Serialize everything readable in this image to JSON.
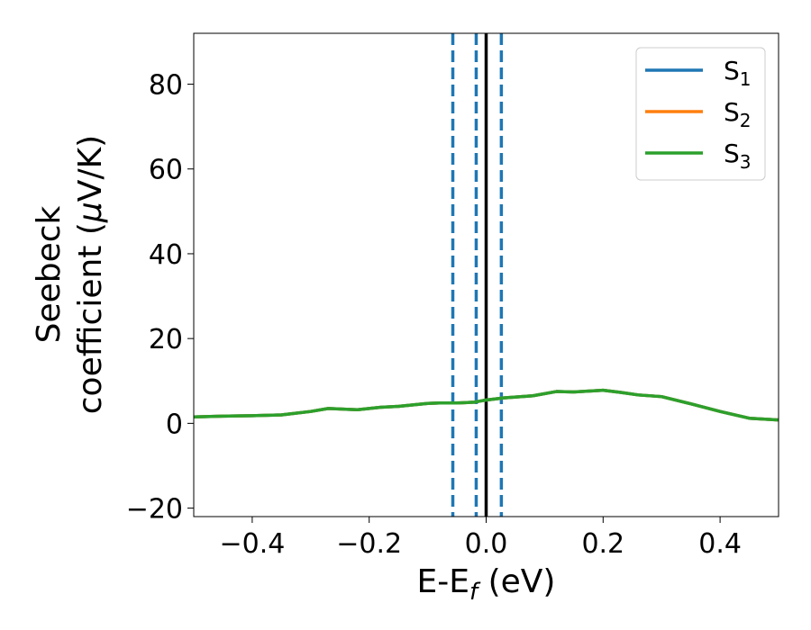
{
  "chart_data": {
    "type": "line",
    "title": "",
    "xlabel": "E-E",
    "xlabel_sub": "f",
    "xlabel_unit": " (eV)",
    "ylabel_line1": "Seebeck",
    "ylabel_line2": "coefficient  (",
    "ylabel_mu": "μ",
    "ylabel_unit": "V/K)",
    "xlim": [
      -0.5,
      0.5
    ],
    "ylim": [
      -22,
      92
    ],
    "xticks": [
      -0.4,
      -0.2,
      0.0,
      0.2,
      0.4
    ],
    "xtick_labels": [
      "−0.4",
      "−0.2",
      "0.0",
      "0.2",
      "0.4"
    ],
    "yticks": [
      -20,
      0,
      20,
      40,
      60,
      80
    ],
    "ytick_labels": [
      "−20",
      "0",
      "20",
      "40",
      "60",
      "80"
    ],
    "grid": false,
    "legend_position": "top-right",
    "series": [
      {
        "name": "S",
        "sub": "1",
        "color": "#1f77b4",
        "x": [
          -0.5,
          -0.45,
          -0.4,
          -0.35,
          -0.3,
          -0.27,
          -0.22,
          -0.18,
          -0.15,
          -0.1,
          -0.08,
          -0.05,
          -0.02,
          0.0,
          0.03,
          0.08,
          0.12,
          0.15,
          0.2,
          0.23,
          0.26,
          0.3,
          0.35,
          0.4,
          0.45,
          0.5
        ],
        "y": [
          1.5,
          1.7,
          1.8,
          2.0,
          2.8,
          3.5,
          3.2,
          3.8,
          4.0,
          4.7,
          4.8,
          4.8,
          5.0,
          5.5,
          6.0,
          6.5,
          7.5,
          7.4,
          7.8,
          7.3,
          6.7,
          6.3,
          4.6,
          2.8,
          1.2,
          0.8
        ]
      },
      {
        "name": "S",
        "sub": "2",
        "color": "#ff7f0e",
        "x": [
          -0.5,
          -0.45,
          -0.4,
          -0.35,
          -0.3,
          -0.27,
          -0.22,
          -0.18,
          -0.15,
          -0.1,
          -0.08,
          -0.05,
          -0.02,
          0.0,
          0.03,
          0.08,
          0.12,
          0.15,
          0.2,
          0.23,
          0.26,
          0.3,
          0.35,
          0.4,
          0.45,
          0.5
        ],
        "y": [
          1.5,
          1.7,
          1.8,
          2.0,
          2.8,
          3.5,
          3.2,
          3.8,
          4.0,
          4.7,
          4.8,
          4.8,
          5.0,
          5.5,
          6.0,
          6.5,
          7.5,
          7.4,
          7.8,
          7.3,
          6.7,
          6.3,
          4.6,
          2.8,
          1.2,
          0.8
        ]
      },
      {
        "name": "S",
        "sub": "3",
        "color": "#2ca02c",
        "x": [
          -0.5,
          -0.45,
          -0.4,
          -0.35,
          -0.3,
          -0.27,
          -0.22,
          -0.18,
          -0.15,
          -0.1,
          -0.08,
          -0.05,
          -0.02,
          0.0,
          0.03,
          0.08,
          0.12,
          0.15,
          0.2,
          0.23,
          0.26,
          0.3,
          0.35,
          0.4,
          0.45,
          0.5
        ],
        "y": [
          1.5,
          1.7,
          1.8,
          2.0,
          2.8,
          3.5,
          3.2,
          3.8,
          4.0,
          4.7,
          4.8,
          4.8,
          5.0,
          5.5,
          6.0,
          6.5,
          7.5,
          7.4,
          7.8,
          7.3,
          6.7,
          6.3,
          4.6,
          2.8,
          1.2,
          0.8
        ]
      }
    ],
    "vlines": [
      {
        "x": -0.057,
        "style": "dashed",
        "color": "#1f77b4"
      },
      {
        "x": -0.017,
        "style": "dashed",
        "color": "#1f77b4"
      },
      {
        "x": 0.0,
        "style": "solid",
        "color": "#000000"
      },
      {
        "x": 0.026,
        "style": "dashed",
        "color": "#1f77b4"
      }
    ]
  }
}
